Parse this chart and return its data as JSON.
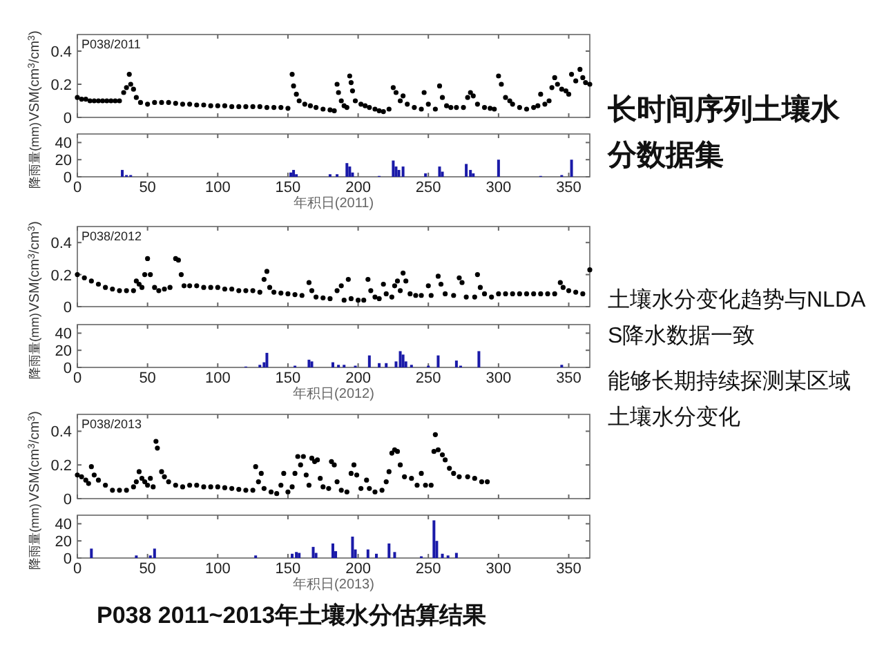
{
  "chart_data": [
    {
      "type": "scatter",
      "title": "P038/2011",
      "ylabel": "VSM(cm$^{3}$/cm$^{3}$)",
      "xlim": [
        0,
        365
      ],
      "xticks": [
        0,
        50,
        100,
        150,
        200,
        250,
        300,
        350
      ],
      "ylim": [
        0,
        0.5
      ],
      "yticks": [
        0,
        0.2,
        0.4
      ],
      "tick_labels": "y",
      "marker": "circle",
      "color": "#000000",
      "x": [
        0,
        3,
        6,
        9,
        12,
        15,
        18,
        21,
        24,
        27,
        30,
        33,
        35,
        37,
        38,
        40,
        42,
        45,
        50,
        55,
        60,
        65,
        70,
        75,
        80,
        85,
        90,
        95,
        100,
        105,
        110,
        115,
        120,
        125,
        130,
        135,
        140,
        145,
        150,
        153,
        154,
        156,
        158,
        162,
        166,
        170,
        175,
        180,
        183,
        185,
        186,
        188,
        190,
        192,
        194,
        195,
        196,
        198,
        202,
        205,
        208,
        212,
        215,
        218,
        222,
        225,
        227,
        230,
        232,
        235,
        240,
        245,
        247,
        250,
        255,
        258,
        260,
        263,
        266,
        270,
        275,
        278,
        280,
        282,
        285,
        290,
        294,
        297,
        300,
        302,
        305,
        308,
        310,
        315,
        320,
        325,
        328,
        330,
        333,
        336,
        338,
        340,
        342,
        345,
        348,
        350,
        352,
        355,
        358,
        360,
        362,
        365
      ],
      "values": [
        0.12,
        0.11,
        0.11,
        0.1,
        0.1,
        0.1,
        0.1,
        0.1,
        0.1,
        0.1,
        0.1,
        0.15,
        0.18,
        0.26,
        0.2,
        0.17,
        0.12,
        0.09,
        0.08,
        0.09,
        0.09,
        0.09,
        0.085,
        0.08,
        0.08,
        0.075,
        0.075,
        0.07,
        0.07,
        0.07,
        0.065,
        0.065,
        0.065,
        0.065,
        0.065,
        0.06,
        0.06,
        0.06,
        0.055,
        0.26,
        0.19,
        0.14,
        0.1,
        0.08,
        0.07,
        0.06,
        0.05,
        0.045,
        0.04,
        0.2,
        0.15,
        0.1,
        0.07,
        0.06,
        0.25,
        0.21,
        0.16,
        0.1,
        0.08,
        0.07,
        0.06,
        0.05,
        0.04,
        0.035,
        0.05,
        0.18,
        0.15,
        0.1,
        0.13,
        0.08,
        0.06,
        0.05,
        0.15,
        0.08,
        0.05,
        0.19,
        0.12,
        0.07,
        0.06,
        0.06,
        0.06,
        0.12,
        0.15,
        0.13,
        0.08,
        0.06,
        0.055,
        0.05,
        0.25,
        0.2,
        0.12,
        0.1,
        0.08,
        0.06,
        0.05,
        0.06,
        0.07,
        0.14,
        0.08,
        0.1,
        0.18,
        0.24,
        0.2,
        0.17,
        0.16,
        0.14,
        0.26,
        0.22,
        0.29,
        0.24,
        0.21,
        0.2
      ]
    },
    {
      "type": "bar",
      "xlabel": "年积日(2011)",
      "ylabel": "降雨量(mm)",
      "xlim": [
        0,
        365
      ],
      "xticks": [
        0,
        50,
        100,
        150,
        200,
        250,
        300,
        350
      ],
      "ylim": [
        0,
        50
      ],
      "yticks": [
        0,
        20,
        40
      ],
      "color": "#1a1aa8",
      "x": [
        32,
        35,
        38,
        152,
        154,
        156,
        180,
        185,
        192,
        194,
        196,
        215,
        225,
        227,
        229,
        232,
        248,
        258,
        260,
        277,
        280,
        282,
        300,
        330,
        345,
        352
      ],
      "values": [
        8,
        2,
        2,
        5,
        8,
        3,
        3,
        3,
        16,
        12,
        5,
        1,
        19,
        12,
        8,
        12,
        4,
        12,
        6,
        15,
        8,
        4,
        20,
        1,
        2,
        20
      ]
    },
    {
      "type": "scatter",
      "title": "P038/2012",
      "ylabel": "VSM(cm$^{3}$/cm$^{3}$)",
      "xlim": [
        0,
        365
      ],
      "xticks": [
        0,
        50,
        100,
        150,
        200,
        250,
        300,
        350
      ],
      "ylim": [
        0,
        0.5
      ],
      "yticks": [
        0,
        0.2,
        0.4
      ],
      "tick_labels": "y",
      "marker": "circle",
      "color": "#000000",
      "x": [
        0,
        5,
        10,
        15,
        20,
        25,
        30,
        35,
        40,
        42,
        44,
        46,
        48,
        50,
        52,
        55,
        58,
        62,
        66,
        70,
        72,
        74,
        76,
        80,
        85,
        90,
        95,
        100,
        105,
        110,
        115,
        120,
        125,
        130,
        133,
        135,
        137,
        140,
        145,
        150,
        155,
        160,
        165,
        167,
        170,
        175,
        180,
        185,
        188,
        190,
        193,
        195,
        200,
        204,
        207,
        209,
        212,
        215,
        218,
        220,
        224,
        226,
        228,
        230,
        232,
        234,
        237,
        241,
        245,
        250,
        252,
        257,
        259,
        262,
        268,
        272,
        274,
        277,
        283,
        285,
        287,
        290,
        295,
        300,
        305,
        310,
        315,
        320,
        325,
        330,
        335,
        340,
        344,
        346,
        350,
        355,
        360,
        365
      ],
      "values": [
        0.2,
        0.18,
        0.16,
        0.14,
        0.12,
        0.11,
        0.1,
        0.1,
        0.1,
        0.16,
        0.14,
        0.12,
        0.2,
        0.3,
        0.2,
        0.12,
        0.1,
        0.11,
        0.12,
        0.3,
        0.29,
        0.2,
        0.13,
        0.13,
        0.13,
        0.12,
        0.12,
        0.12,
        0.11,
        0.11,
        0.1,
        0.1,
        0.1,
        0.09,
        0.17,
        0.22,
        0.12,
        0.09,
        0.085,
        0.08,
        0.075,
        0.07,
        0.15,
        0.1,
        0.06,
        0.055,
        0.05,
        0.1,
        0.13,
        0.04,
        0.17,
        0.05,
        0.04,
        0.04,
        0.17,
        0.1,
        0.06,
        0.05,
        0.14,
        0.08,
        0.06,
        0.13,
        0.16,
        0.1,
        0.21,
        0.16,
        0.08,
        0.07,
        0.07,
        0.13,
        0.07,
        0.19,
        0.14,
        0.08,
        0.07,
        0.18,
        0.15,
        0.06,
        0.06,
        0.2,
        0.12,
        0.08,
        0.06,
        0.08,
        0.08,
        0.08,
        0.08,
        0.08,
        0.08,
        0.08,
        0.08,
        0.08,
        0.15,
        0.12,
        0.1,
        0.09,
        0.08,
        0.23
      ]
    },
    {
      "type": "bar",
      "xlabel": "年积日(2012)",
      "ylabel": "降雨量(mm)",
      "xlim": [
        0,
        365
      ],
      "xticks": [
        0,
        50,
        100,
        150,
        200,
        250,
        300,
        350
      ],
      "ylim": [
        0,
        50
      ],
      "yticks": [
        0,
        20,
        40
      ],
      "color": "#1a1aa8",
      "x": [
        120,
        130,
        133,
        135,
        155,
        165,
        167,
        182,
        186,
        190,
        198,
        208,
        215,
        220,
        227,
        230,
        232,
        234,
        238,
        250,
        257,
        270,
        273,
        286,
        345
      ],
      "values": [
        1,
        3,
        6,
        17,
        2,
        9,
        7,
        6,
        3,
        3,
        2,
        14,
        5,
        5,
        7,
        19,
        15,
        7,
        3,
        2,
        14,
        8,
        2,
        19,
        3
      ]
    },
    {
      "type": "scatter",
      "title": "P038/2013",
      "ylabel": "VSM(cm$^{3}$/cm$^{3}$)",
      "xlim": [
        0,
        365
      ],
      "xticks": [
        0,
        50,
        100,
        150,
        200,
        250,
        300,
        350
      ],
      "ylim": [
        0,
        0.5
      ],
      "yticks": [
        0,
        0.2,
        0.4
      ],
      "tick_labels": "y",
      "marker": "circle",
      "color": "#000000",
      "x": [
        0,
        3,
        6,
        8,
        10,
        12,
        15,
        20,
        25,
        30,
        35,
        40,
        42,
        44,
        46,
        48,
        50,
        52,
        54,
        56,
        57,
        60,
        62,
        65,
        70,
        75,
        80,
        85,
        90,
        95,
        100,
        105,
        110,
        115,
        120,
        125,
        127,
        129,
        131,
        133,
        138,
        142,
        145,
        147,
        150,
        153,
        155,
        157,
        159,
        161,
        163,
        165,
        167,
        169,
        171,
        173,
        175,
        179,
        181,
        183,
        185,
        188,
        192,
        195,
        197,
        199,
        202,
        206,
        208,
        212,
        217,
        220,
        222,
        224,
        226,
        228,
        230,
        233,
        238,
        242,
        245,
        248,
        252,
        254,
        255,
        257,
        260,
        262,
        265,
        268,
        272,
        278,
        283,
        288,
        292
      ],
      "values": [
        0.14,
        0.13,
        0.11,
        0.09,
        0.19,
        0.14,
        0.11,
        0.08,
        0.05,
        0.05,
        0.05,
        0.07,
        0.1,
        0.16,
        0.12,
        0.1,
        0.08,
        0.12,
        0.07,
        0.34,
        0.3,
        0.16,
        0.13,
        0.1,
        0.08,
        0.07,
        0.08,
        0.08,
        0.07,
        0.07,
        0.07,
        0.065,
        0.06,
        0.055,
        0.05,
        0.05,
        0.19,
        0.1,
        0.15,
        0.06,
        0.04,
        0.03,
        0.08,
        0.15,
        0.04,
        0.07,
        0.15,
        0.25,
        0.2,
        0.25,
        0.14,
        0.08,
        0.24,
        0.22,
        0.23,
        0.12,
        0.07,
        0.06,
        0.22,
        0.2,
        0.1,
        0.05,
        0.04,
        0.15,
        0.2,
        0.14,
        0.06,
        0.11,
        0.06,
        0.04,
        0.05,
        0.1,
        0.16,
        0.27,
        0.29,
        0.28,
        0.2,
        0.13,
        0.12,
        0.08,
        0.15,
        0.08,
        0.08,
        0.28,
        0.38,
        0.29,
        0.26,
        0.23,
        0.18,
        0.15,
        0.13,
        0.13,
        0.12,
        0.1,
        0.1
      ]
    },
    {
      "type": "bar",
      "xlabel": "年积日(2013)",
      "ylabel": "降雨量(mm)",
      "xlim": [
        0,
        365
      ],
      "xticks": [
        0,
        50,
        100,
        150,
        200,
        250,
        300,
        350
      ],
      "ylim": [
        0,
        50
      ],
      "yticks": [
        0,
        20,
        40
      ],
      "color": "#1a1aa8",
      "x": [
        10,
        42,
        52,
        55,
        127,
        153,
        156,
        158,
        168,
        170,
        182,
        184,
        196,
        198,
        207,
        213,
        222,
        226,
        245,
        254,
        256,
        260,
        264,
        270
      ],
      "values": [
        11,
        3,
        3,
        11,
        3,
        5,
        7,
        6,
        13,
        6,
        17,
        8,
        25,
        10,
        10,
        5,
        17,
        7,
        2,
        44,
        20,
        5,
        3,
        6
      ]
    },
    {
      "type": "other",
      "title": "长时间序列土壤水分数据集",
      "annotations": [
        "土壤水分变化趋势与NLDAS降水数据一致",
        "能够长期持续探测某区域土壤水分变化",
        "P038 2011~2013年土壤水分估算结果"
      ]
    }
  ]
}
